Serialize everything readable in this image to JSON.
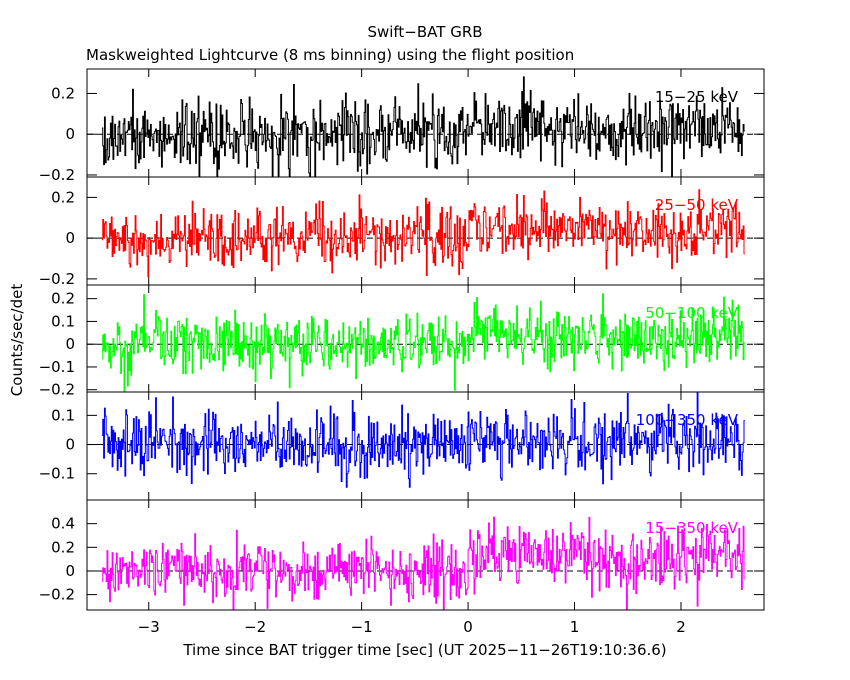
{
  "title": "Swift−BAT GRB",
  "subtitle": "Maskweighted Lightcurve (8 ms binning) using the flight position",
  "xlabel": "Time since BAT trigger time [sec] (UT 2025−11−26T19:10:36.6)",
  "ylabel": "Counts/sec/det",
  "chart_data": {
    "type": "line",
    "binning_ms": 8,
    "x_range": [
      -3.44,
      2.6
    ],
    "xlim": [
      -3.58,
      2.78
    ],
    "x_ticks": [
      -3,
      -2,
      -1,
      0,
      1,
      2
    ],
    "x_tick_labels": [
      "−3",
      "−2",
      "−1",
      "0",
      "1",
      "2"
    ],
    "grid": false,
    "panels": [
      {
        "label": "15−25 keV",
        "color": "#000000",
        "ylim": [
          -0.21,
          0.32
        ],
        "yticks": [
          -0.2,
          0,
          0.2
        ],
        "ytick_labels": [
          "−0.2",
          "0",
          "0.2"
        ],
        "noise": 0.085,
        "excess": 0.03
      },
      {
        "label": "25−50 keV",
        "color": "#ff0000",
        "ylim": [
          -0.23,
          0.3
        ],
        "yticks": [
          -0.2,
          0,
          0.2
        ],
        "ytick_labels": [
          "−0.2",
          "0",
          "0.2"
        ],
        "noise": 0.07,
        "excess": 0.045
      },
      {
        "label": "50−100 keV",
        "color": "#00ff00",
        "ylim": [
          -0.21,
          0.26
        ],
        "yticks": [
          -0.2,
          -0.1,
          0,
          0.1,
          0.2
        ],
        "ytick_labels": [
          "−0.2",
          "−0.1",
          "0",
          "0.1",
          "0.2"
        ],
        "noise": 0.065,
        "excess": 0.035
      },
      {
        "label": "100−350 keV",
        "color": "#0000ff",
        "ylim": [
          -0.19,
          0.18
        ],
        "yticks": [
          -0.1,
          0,
          0.1
        ],
        "ytick_labels": [
          "−0.1",
          "0",
          "0.1"
        ],
        "noise": 0.055,
        "excess": 0.01
      },
      {
        "label": "15−350 keV",
        "color": "#ff00ff",
        "ylim": [
          -0.33,
          0.6
        ],
        "yticks": [
          -0.2,
          0,
          0.2,
          0.4
        ],
        "ytick_labels": [
          "−0.2",
          "0",
          "0.2",
          "0.4"
        ],
        "noise": 0.13,
        "excess": 0.12
      }
    ]
  }
}
